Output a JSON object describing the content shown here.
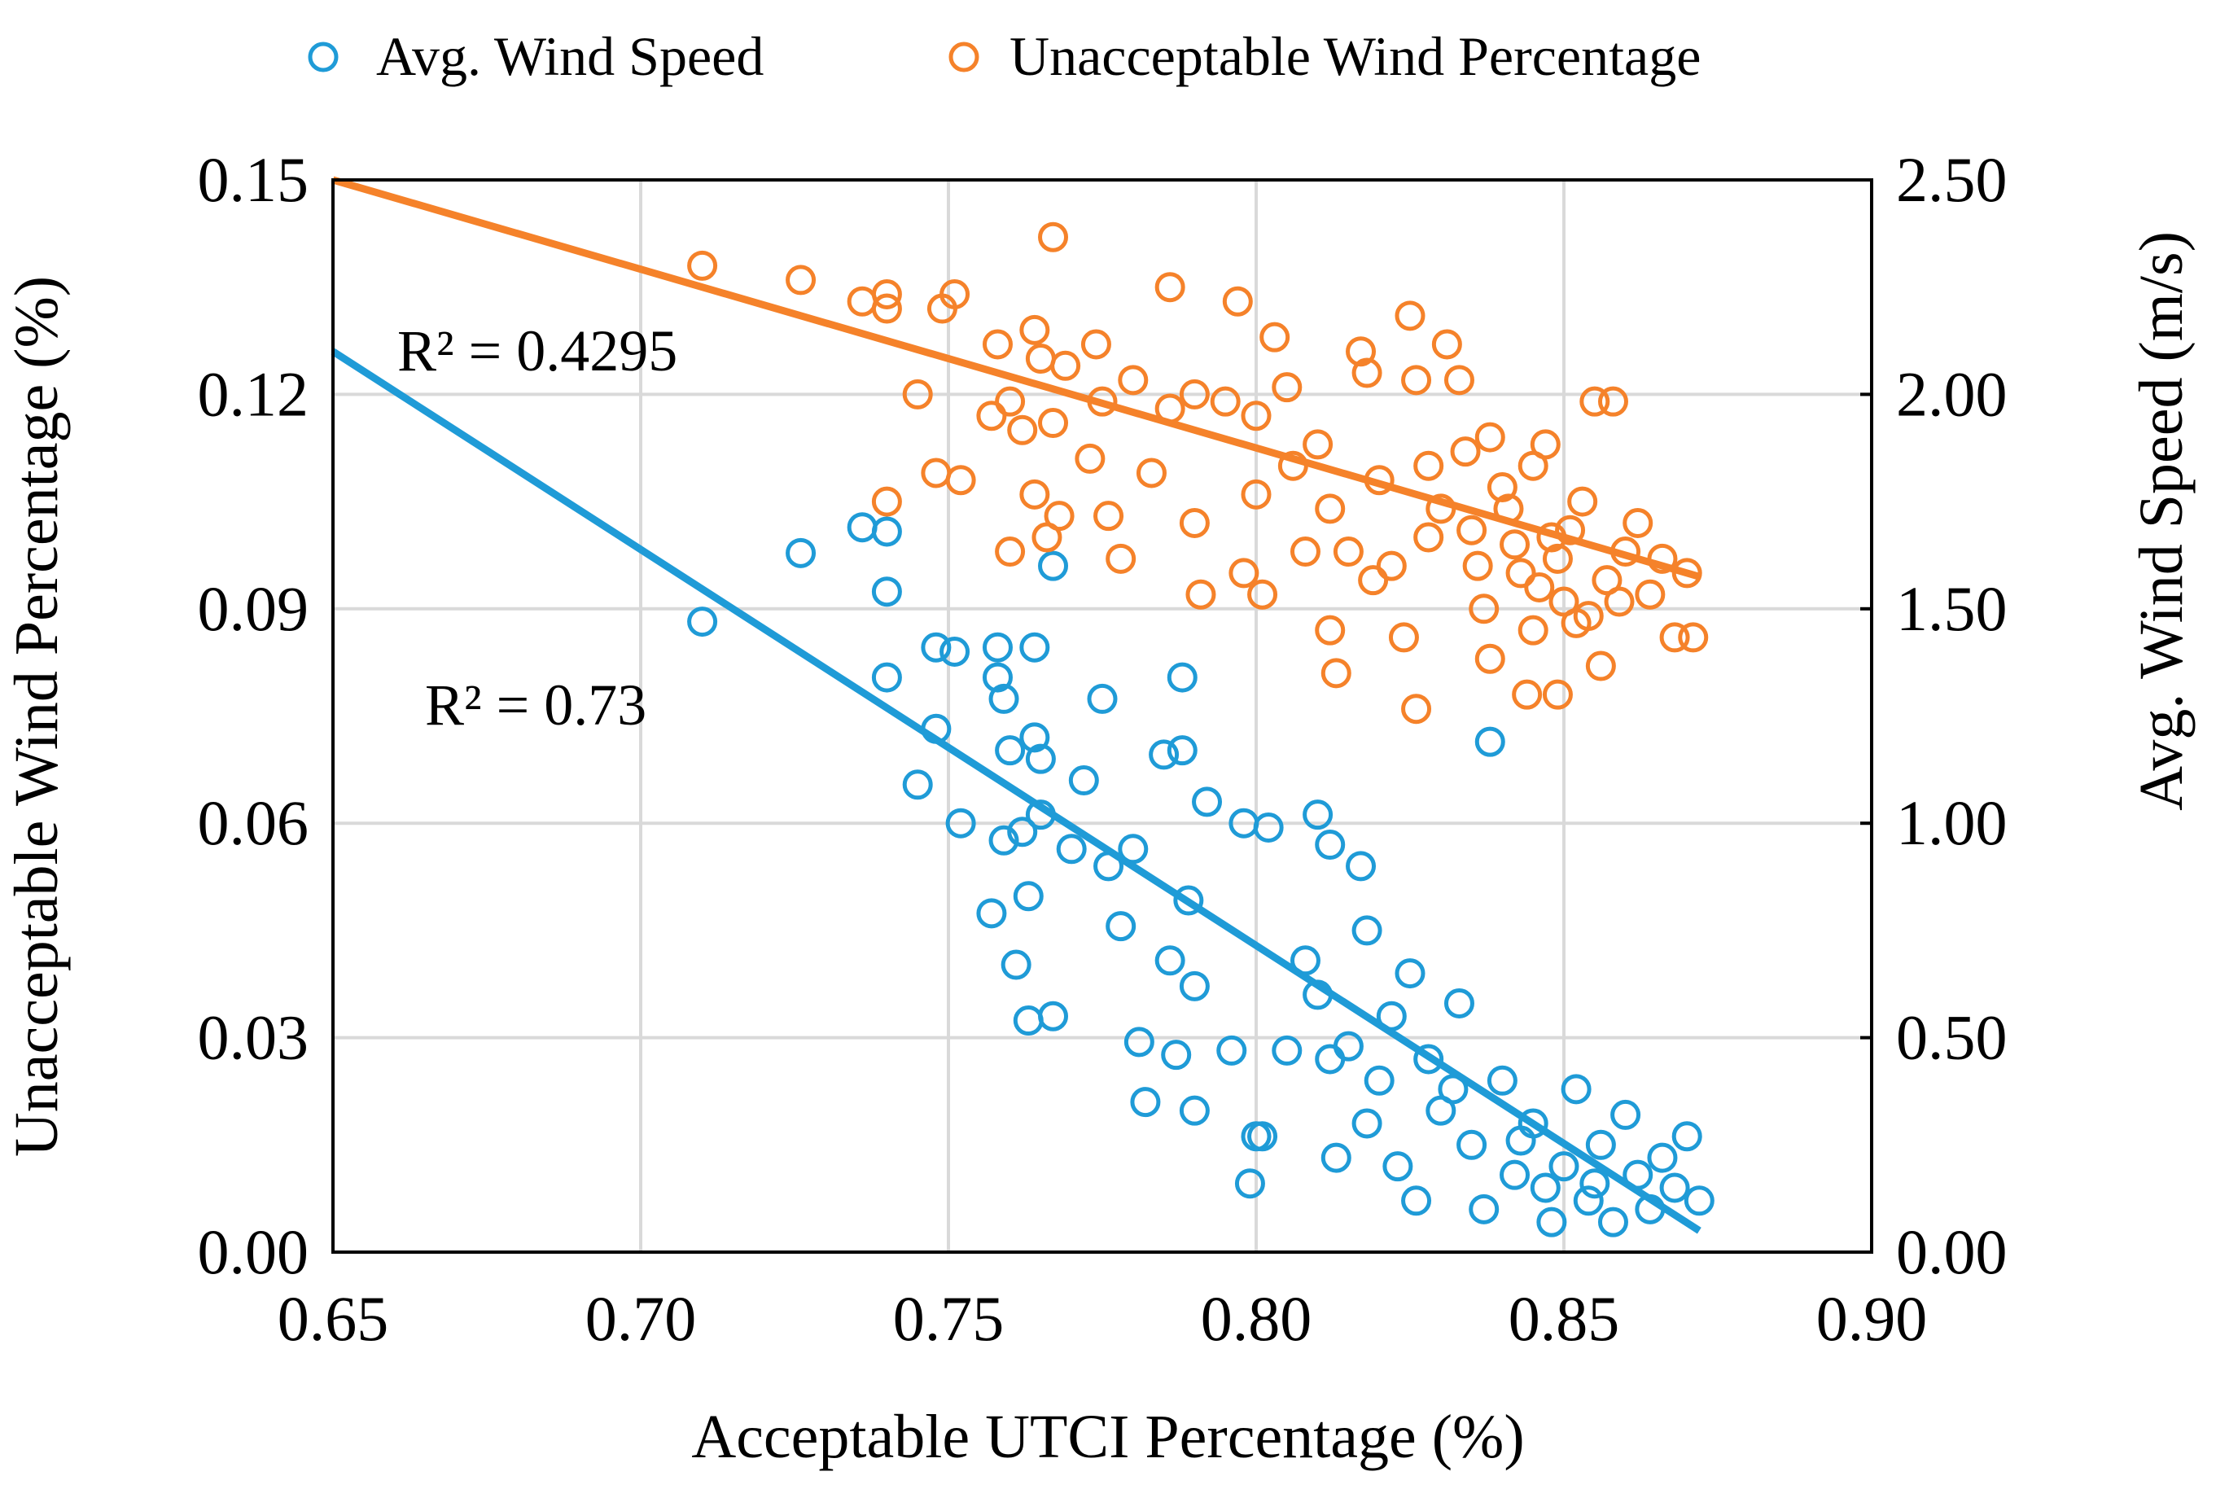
{
  "chart_data": {
    "type": "scatter",
    "x_label": "Acceptable UTCI Percentage (%)",
    "y_label": "Unacceptable Wind Percentage (%)",
    "y2_label": "Avg. Wind Speed (m/s)",
    "xlim": [
      0.65,
      0.9
    ],
    "xticks": [
      0.65,
      {
        "value": 0.7,
        "label": "0.70"
      },
      0.75,
      {
        "value": 0.8,
        "label": "0.80"
      },
      0.85,
      {
        "value": 0.9,
        "label": "0.90"
      }
    ],
    "ylim": [
      0,
      0.15
    ],
    "yticks": [
      {
        "value": 0,
        "label": "0.00"
      },
      0.03,
      0.06,
      0.09,
      0.12,
      0.15
    ],
    "y2lim": [
      0,
      2.5
    ],
    "y2ticks": [
      {
        "value": 0,
        "label": "0.00"
      },
      {
        "value": 0.5,
        "label": "0.50"
      },
      {
        "value": 1,
        "label": "1.00"
      },
      {
        "value": 1.5,
        "label": "1.50"
      },
      {
        "value": 2,
        "label": "2.00"
      },
      {
        "value": 2.5,
        "label": "2.50"
      }
    ],
    "grid": true,
    "legend": "top",
    "series": [
      {
        "name": "Avg. Wind Speed",
        "color": "#1f9bd7",
        "axis": "y2",
        "x": [
          0.71,
          0.726,
          0.736,
          0.74,
          0.74,
          0.74,
          0.767,
          0.748,
          0.751,
          0.758,
          0.764,
          0.758,
          0.759,
          0.748,
          0.745,
          0.752,
          0.76,
          0.764,
          0.765,
          0.772,
          0.775,
          0.785,
          0.788,
          0.788,
          0.792,
          0.798,
          0.802,
          0.81,
          0.812,
          0.817,
          0.759,
          0.762,
          0.765,
          0.77,
          0.776,
          0.78,
          0.757,
          0.763,
          0.761,
          0.763,
          0.767,
          0.778,
          0.786,
          0.789,
          0.79,
          0.781,
          0.787,
          0.782,
          0.79,
          0.796,
          0.8,
          0.801,
          0.799,
          0.805,
          0.808,
          0.81,
          0.813,
          0.815,
          0.818,
          0.82,
          0.822,
          0.825,
          0.826,
          0.828,
          0.83,
          0.833,
          0.835,
          0.837,
          0.838,
          0.84,
          0.842,
          0.845,
          0.847,
          0.848,
          0.85,
          0.852,
          0.854,
          0.856,
          0.858,
          0.86,
          0.862,
          0.864,
          0.866,
          0.868,
          0.87,
          0.872,
          0.812,
          0.818,
          0.823,
          0.832,
          0.843,
          0.855
        ],
        "values": [
          1.47,
          1.63,
          1.69,
          1.68,
          1.54,
          1.34,
          1.6,
          1.41,
          1.4,
          1.41,
          1.41,
          1.34,
          1.29,
          1.22,
          1.09,
          1.0,
          1.17,
          1.2,
          1.15,
          1.1,
          1.29,
          1.16,
          1.34,
          1.17,
          1.05,
          1.0,
          0.99,
          1.02,
          0.95,
          0.9,
          0.96,
          0.98,
          1.02,
          0.94,
          0.9,
          0.94,
          0.79,
          0.83,
          0.67,
          0.54,
          0.55,
          0.76,
          0.68,
          0.82,
          0.62,
          0.49,
          0.46,
          0.35,
          0.33,
          0.47,
          0.27,
          0.27,
          0.16,
          0.47,
          0.68,
          0.6,
          0.22,
          0.48,
          0.75,
          0.4,
          0.55,
          0.65,
          0.12,
          0.45,
          0.33,
          0.58,
          0.25,
          0.1,
          1.19,
          0.4,
          0.18,
          0.3,
          0.15,
          0.07,
          0.2,
          0.38,
          0.12,
          0.25,
          0.07,
          0.32,
          0.18,
          0.1,
          0.22,
          0.15,
          0.27,
          0.12,
          0.45,
          0.3,
          0.2,
          0.38,
          0.26,
          0.16
        ]
      },
      {
        "name": "Unacceptable Wind Percentage",
        "color": "#f5822a",
        "x": [
          0.71,
          0.726,
          0.736,
          0.74,
          0.74,
          0.749,
          0.751,
          0.767,
          0.786,
          0.797,
          0.745,
          0.748,
          0.752,
          0.74,
          0.758,
          0.764,
          0.765,
          0.774,
          0.769,
          0.76,
          0.757,
          0.762,
          0.767,
          0.775,
          0.78,
          0.786,
          0.79,
          0.795,
          0.8,
          0.803,
          0.805,
          0.76,
          0.764,
          0.766,
          0.768,
          0.776,
          0.773,
          0.778,
          0.783,
          0.79,
          0.791,
          0.798,
          0.801,
          0.8,
          0.806,
          0.81,
          0.812,
          0.815,
          0.817,
          0.818,
          0.82,
          0.822,
          0.824,
          0.825,
          0.826,
          0.828,
          0.83,
          0.831,
          0.833,
          0.835,
          0.837,
          0.84,
          0.842,
          0.843,
          0.845,
          0.846,
          0.848,
          0.849,
          0.85,
          0.852,
          0.853,
          0.855,
          0.857,
          0.858,
          0.86,
          0.862,
          0.864,
          0.866,
          0.868,
          0.87,
          0.871,
          0.813,
          0.826,
          0.838,
          0.844,
          0.849,
          0.856,
          0.812,
          0.819,
          0.834,
          0.838,
          0.841,
          0.847,
          0.851,
          0.854,
          0.859,
          0.836,
          0.828,
          0.808,
          0.845
        ],
        "values": [
          0.138,
          0.136,
          0.133,
          0.134,
          0.132,
          0.132,
          0.134,
          0.142,
          0.135,
          0.133,
          0.12,
          0.109,
          0.108,
          0.105,
          0.127,
          0.129,
          0.125,
          0.127,
          0.124,
          0.119,
          0.117,
          0.115,
          0.116,
          0.119,
          0.122,
          0.118,
          0.12,
          0.119,
          0.117,
          0.128,
          0.121,
          0.098,
          0.106,
          0.1,
          0.103,
          0.103,
          0.111,
          0.097,
          0.109,
          0.102,
          0.092,
          0.095,
          0.092,
          0.106,
          0.11,
          0.113,
          0.104,
          0.098,
          0.126,
          0.123,
          0.108,
          0.096,
          0.086,
          0.131,
          0.122,
          0.11,
          0.104,
          0.127,
          0.122,
          0.101,
          0.09,
          0.107,
          0.099,
          0.095,
          0.11,
          0.093,
          0.1,
          0.097,
          0.091,
          0.088,
          0.105,
          0.119,
          0.094,
          0.119,
          0.098,
          0.102,
          0.092,
          0.097,
          0.086,
          0.095,
          0.086,
          0.081,
          0.076,
          0.083,
          0.078,
          0.078,
          0.082,
          0.087,
          0.094,
          0.112,
          0.114,
          0.104,
          0.113,
          0.101,
          0.089,
          0.091,
          0.096,
          0.1,
          0.098,
          0.087
        ]
      }
    ],
    "trendlines": [
      {
        "color": "#1f9bd7",
        "axis": "y2",
        "x": [
          0.65,
          0.872
        ],
        "values": [
          2.1,
          0.05
        ]
      },
      {
        "color": "#f5822a",
        "x": [
          0.65,
          0.872
        ],
        "values": [
          0.15,
          0.0945
        ]
      }
    ],
    "annotations": [
      "R² = 0.4295",
      "R² = 0.73"
    ]
  }
}
